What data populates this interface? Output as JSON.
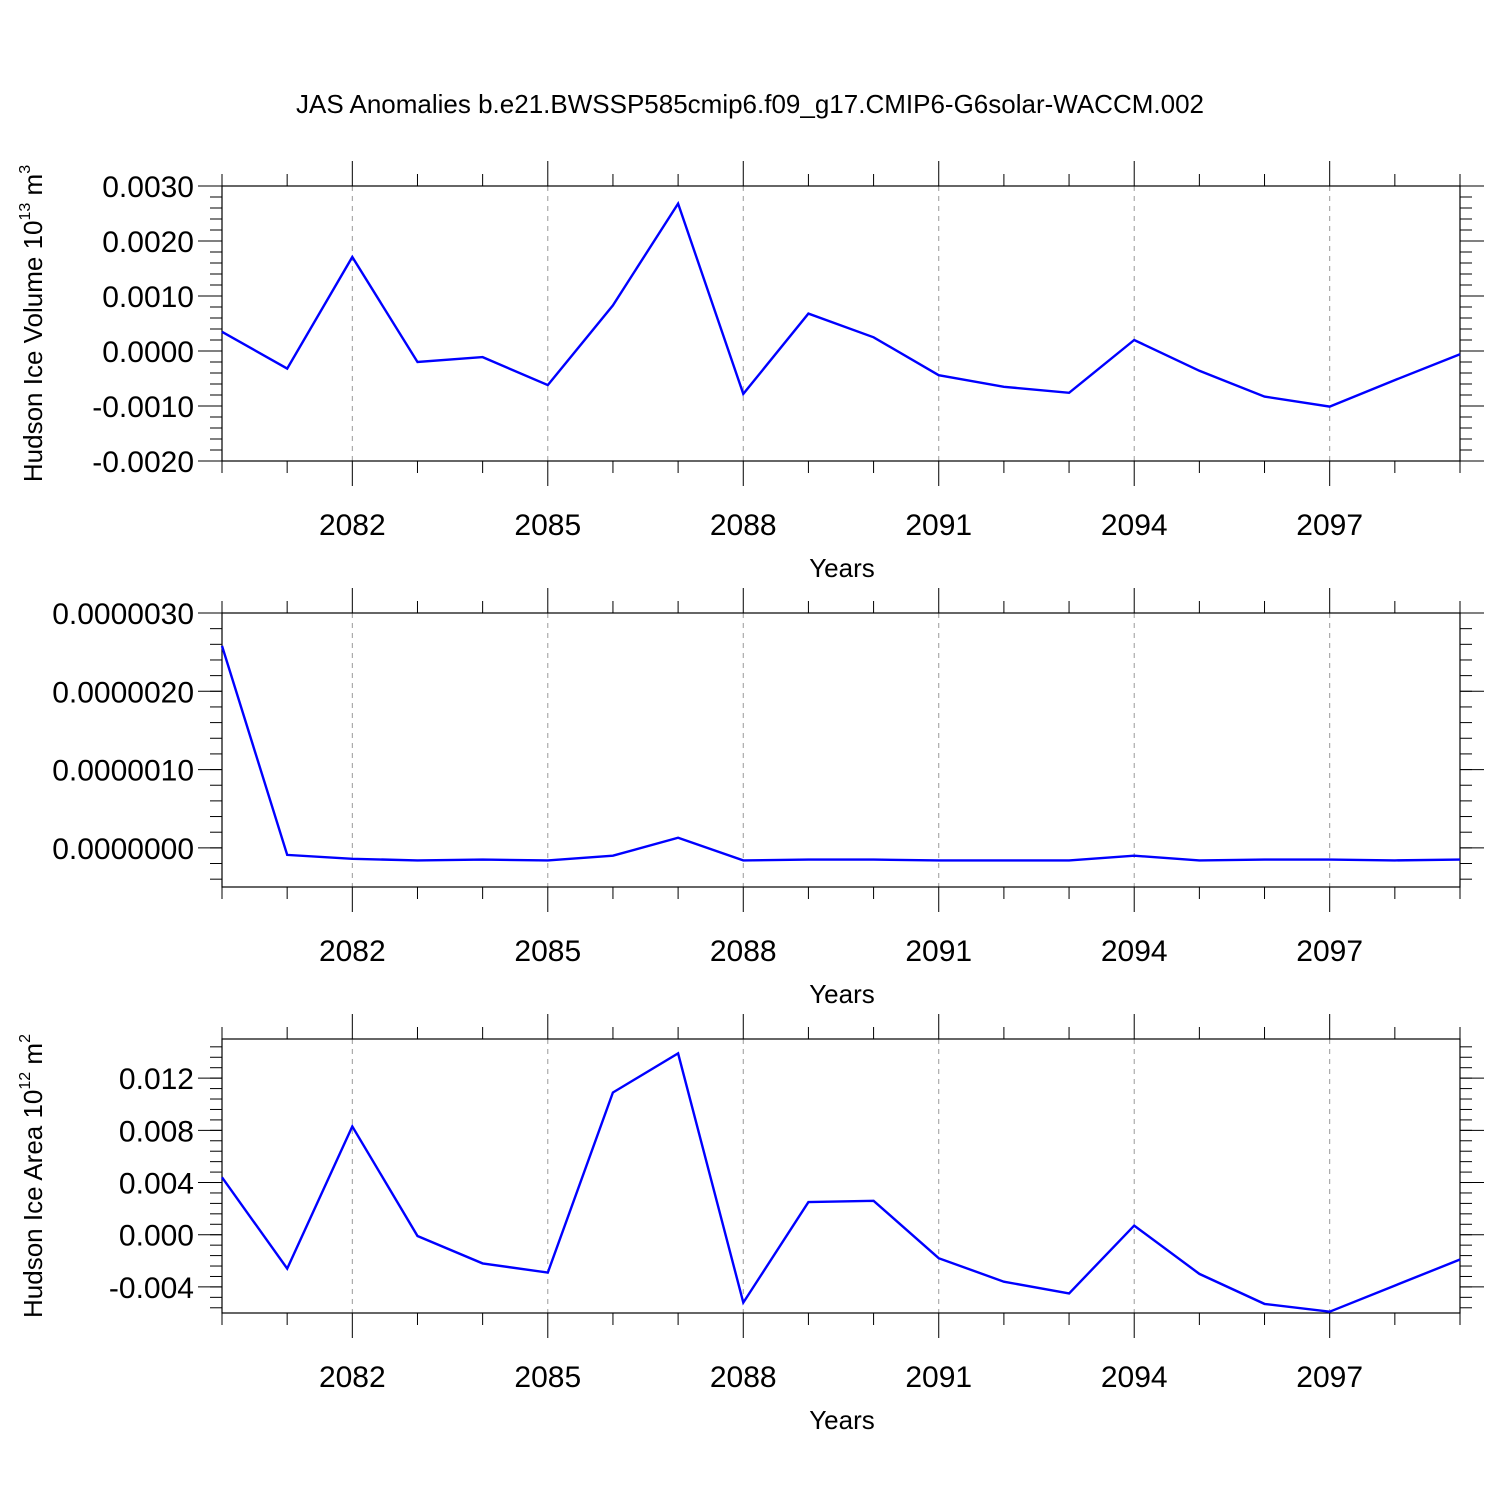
{
  "title": "JAS Anomalies b.e21.BWSSP585cmip6.f09_g17.CMIP6-G6solar-WACCM.002",
  "colors": {
    "line": "#0000ff",
    "grid": "#9a9a9a",
    "frame": "#000000"
  },
  "chart_data": [
    {
      "type": "line",
      "ylabel": {
        "text": "Hudson Ice Volume 10",
        "exp": "13",
        "unit": " m",
        "unit_exp": "3"
      },
      "xlabel": "Years",
      "xlim": [
        2080,
        2099
      ],
      "ylim": [
        -0.002,
        0.003
      ],
      "xticks": [
        2082,
        2085,
        2088,
        2091,
        2094,
        2097
      ],
      "xtick_labels": [
        "2082",
        "2085",
        "2088",
        "2091",
        "2094",
        "2097"
      ],
      "yticks": [
        -0.002,
        -0.001,
        0.0,
        0.001,
        0.002,
        0.003
      ],
      "ytick_labels": [
        "-0.0020",
        "-0.0010",
        "0.0000",
        "0.0010",
        "0.0020",
        "0.0030"
      ],
      "y_minor_step": 0.0002,
      "grid": "x dashed",
      "series": [
        {
          "x": [
            2080,
            2081,
            2082,
            2083,
            2084,
            2085,
            2086,
            2087,
            2088,
            2089,
            2090,
            2091,
            2092,
            2093,
            2094,
            2095,
            2096,
            2097,
            2098,
            2099
          ],
          "values": [
            0.00035,
            -0.00032,
            0.00171,
            -0.0002,
            -0.00011,
            -0.00062,
            0.00083,
            0.00268,
            -0.00078,
            0.00068,
            0.00025,
            -0.00044,
            -0.00065,
            -0.00076,
            0.0002,
            -0.00036,
            -0.00083,
            -0.00101,
            -0.00053,
            -6e-05
          ]
        }
      ]
    },
    {
      "type": "line",
      "ylabel": null,
      "xlabel": "Years",
      "xlim": [
        2080,
        2099
      ],
      "ylim": [
        -5e-07,
        3e-06
      ],
      "xticks": [
        2082,
        2085,
        2088,
        2091,
        2094,
        2097
      ],
      "xtick_labels": [
        "2082",
        "2085",
        "2088",
        "2091",
        "2094",
        "2097"
      ],
      "yticks": [
        0.0,
        1e-06,
        2e-06,
        3e-06
      ],
      "ytick_labels": [
        "0.0000000",
        "0.0000010",
        "0.0000020",
        "0.0000030"
      ],
      "y_minor_step": 2e-07,
      "grid": "x dashed",
      "series": [
        {
          "x": [
            2080,
            2081,
            2082,
            2083,
            2084,
            2085,
            2086,
            2087,
            2088,
            2089,
            2090,
            2091,
            2092,
            2093,
            2094,
            2095,
            2096,
            2097,
            2098,
            2099
          ],
          "values": [
            2.58e-06,
            -9e-08,
            -1.4e-07,
            -1.6e-07,
            -1.5e-07,
            -1.6e-07,
            -1e-07,
            1.3e-07,
            -1.6e-07,
            -1.5e-07,
            -1.5e-07,
            -1.6e-07,
            -1.6e-07,
            -1.6e-07,
            -1e-07,
            -1.6e-07,
            -1.5e-07,
            -1.5e-07,
            -1.6e-07,
            -1.5e-07
          ]
        }
      ]
    },
    {
      "type": "line",
      "ylabel": {
        "text": "Hudson Ice Area 10",
        "exp": "12",
        "unit": " m",
        "unit_exp": "2"
      },
      "xlabel": "Years",
      "xlim": [
        2080,
        2099
      ],
      "ylim": [
        -0.006,
        0.015
      ],
      "xticks": [
        2082,
        2085,
        2088,
        2091,
        2094,
        2097
      ],
      "xtick_labels": [
        "2082",
        "2085",
        "2088",
        "2091",
        "2094",
        "2097"
      ],
      "yticks": [
        -0.004,
        0.0,
        0.004,
        0.008,
        0.012
      ],
      "ytick_labels": [
        "-0.004",
        "0.000",
        "0.004",
        "0.008",
        "0.012"
      ],
      "y_minor_step": 0.0008,
      "grid": "x dashed",
      "series": [
        {
          "x": [
            2080,
            2081,
            2082,
            2083,
            2084,
            2085,
            2086,
            2087,
            2088,
            2089,
            2090,
            2091,
            2092,
            2093,
            2094,
            2095,
            2096,
            2097,
            2098,
            2099
          ],
          "values": [
            0.0044,
            -0.0026,
            0.0083,
            -0.0001,
            -0.0022,
            -0.0029,
            0.0109,
            0.0139,
            -0.0052,
            0.0025,
            0.0026,
            -0.0018,
            -0.0036,
            -0.0045,
            0.0007,
            -0.003,
            -0.0053,
            -0.0059,
            -0.0039,
            -0.0019
          ]
        }
      ]
    }
  ]
}
